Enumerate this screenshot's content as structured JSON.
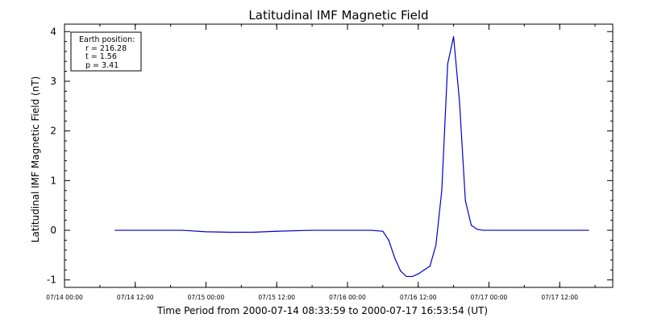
{
  "chart_data": {
    "type": "line",
    "title": "Latitudinal IMF Magnetic Field",
    "xlabel": "Time Period from 2000-07-14 08:33:59 to 2000-07-17 16:53:54 (UT)",
    "ylabel": "Latitudinal IMF Magnetic Field (nT)",
    "ylim": [
      -1.15,
      4.15
    ],
    "xlim": [
      "2000-07-14 00:00",
      "2000-07-17 21:00"
    ],
    "yticks": [
      -1,
      0,
      1,
      2,
      3,
      4
    ],
    "xtick_labels": [
      "07/14 00:00",
      "07/14 12:00",
      "07/15 00:00",
      "07/15 12:00",
      "07/16 00:00",
      "07/16 12:00",
      "07/17 00:00",
      "07/17 12:00"
    ],
    "xtick_values": [
      "2000-07-14 00:00",
      "2000-07-14 12:00",
      "2000-07-15 00:00",
      "2000-07-15 12:00",
      "2000-07-16 00:00",
      "2000-07-16 12:00",
      "2000-07-17 00:00",
      "2000-07-17 12:00"
    ],
    "grid": false,
    "line_color": "#0000cc",
    "legend": {
      "placement": "top-left",
      "lines": [
        "Earth position:",
        "r = 216.28",
        "t = 1.56",
        "p = 3.41"
      ]
    },
    "series": [
      {
        "x": [
          "2000-07-14 08:34",
          "2000-07-14 20:00",
          "2000-07-15 00:00",
          "2000-07-15 04:00",
          "2000-07-15 08:00",
          "2000-07-15 12:00",
          "2000-07-15 18:00",
          "2000-07-16 00:00",
          "2000-07-16 04:00",
          "2000-07-16 06:00",
          "2000-07-16 07:00",
          "2000-07-16 08:00",
          "2000-07-16 09:00",
          "2000-07-16 10:00",
          "2000-07-16 11:00",
          "2000-07-16 12:00",
          "2000-07-16 13:00",
          "2000-07-16 14:00",
          "2000-07-16 15:00",
          "2000-07-16 16:00",
          "2000-07-16 17:00",
          "2000-07-16 18:00",
          "2000-07-16 19:00",
          "2000-07-16 20:00",
          "2000-07-16 21:00",
          "2000-07-16 22:00",
          "2000-07-16 23:00",
          "2000-07-17 00:00",
          "2000-07-17 02:00",
          "2000-07-17 06:00",
          "2000-07-17 12:00",
          "2000-07-17 16:54"
        ],
        "values": [
          0.0,
          0.0,
          -0.03,
          -0.04,
          -0.04,
          -0.02,
          0.0,
          0.0,
          0.0,
          -0.02,
          -0.2,
          -0.55,
          -0.82,
          -0.93,
          -0.93,
          -0.88,
          -0.8,
          -0.72,
          -0.3,
          0.8,
          3.35,
          3.9,
          2.6,
          0.6,
          0.1,
          0.02,
          0.0,
          0.0,
          0.0,
          0.0,
          0.0,
          0.0
        ]
      }
    ]
  }
}
